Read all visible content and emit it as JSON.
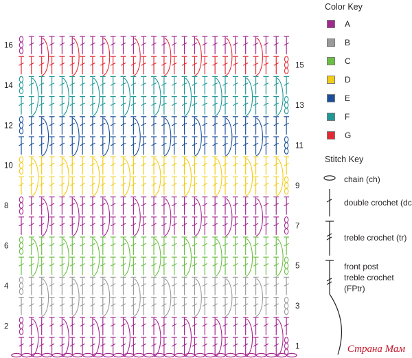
{
  "colors": {
    "A": "#a4268f",
    "B": "#9a9a9b",
    "C": "#6cbf45",
    "D": "#f2cc16",
    "E": "#1b4f99",
    "F": "#1f9896",
    "G": "#e32a33"
  },
  "color_key": {
    "title": "Color Key",
    "items": [
      {
        "letter": "A",
        "color": "#a4268f"
      },
      {
        "letter": "B",
        "color": "#9a9a9b"
      },
      {
        "letter": "C",
        "color": "#6cbf45"
      },
      {
        "letter": "D",
        "color": "#f2cc16"
      },
      {
        "letter": "E",
        "color": "#1b4f99"
      },
      {
        "letter": "F",
        "color": "#1f9896"
      },
      {
        "letter": "G",
        "color": "#e32a33"
      }
    ]
  },
  "stitch_key": {
    "title": "Stitch Key",
    "items": [
      {
        "symbol": "chain",
        "label": "chain (ch)"
      },
      {
        "symbol": "dc",
        "label": "double crochet (dc)"
      },
      {
        "symbol": "tr",
        "label": "treble crochet (tr)"
      },
      {
        "symbol": "fptr",
        "label": "front post\ntreble crochet\n(FPtr)"
      }
    ]
  },
  "pattern": {
    "rows": [
      {
        "number": "1",
        "color": "A",
        "stitch": "dc",
        "side": "right"
      },
      {
        "number": "2",
        "color": "A",
        "stitch": "dc",
        "side": "left"
      },
      {
        "number": "3",
        "color": "B",
        "stitch": "dc",
        "side": "right"
      },
      {
        "number": "4",
        "color": "B",
        "stitch": "dc",
        "side": "left"
      },
      {
        "number": "5",
        "color": "C",
        "stitch": "dc",
        "side": "right"
      },
      {
        "number": "6",
        "color": "C",
        "stitch": "dc",
        "side": "left"
      },
      {
        "number": "7",
        "color": "A",
        "stitch": "dc",
        "side": "right"
      },
      {
        "number": "8",
        "color": "A",
        "stitch": "dc",
        "side": "left"
      },
      {
        "number": "9",
        "color": "D",
        "stitch": "dc",
        "side": "right"
      },
      {
        "number": "10",
        "color": "D",
        "stitch": "dc",
        "side": "left"
      },
      {
        "number": "11",
        "color": "E",
        "stitch": "dc",
        "side": "right"
      },
      {
        "number": "12",
        "color": "E",
        "stitch": "dc",
        "side": "left"
      },
      {
        "number": "13",
        "color": "F",
        "stitch": "dc",
        "side": "right"
      },
      {
        "number": "14",
        "color": "F",
        "stitch": "dc",
        "side": "left"
      },
      {
        "number": "15",
        "color": "G",
        "stitch": "dc",
        "side": "right"
      },
      {
        "number": "16",
        "color": "A",
        "stitch": "dc",
        "side": "left"
      }
    ],
    "foundation": {
      "stitch": "chain",
      "color": "A"
    }
  },
  "watermark": "Страна Мам"
}
